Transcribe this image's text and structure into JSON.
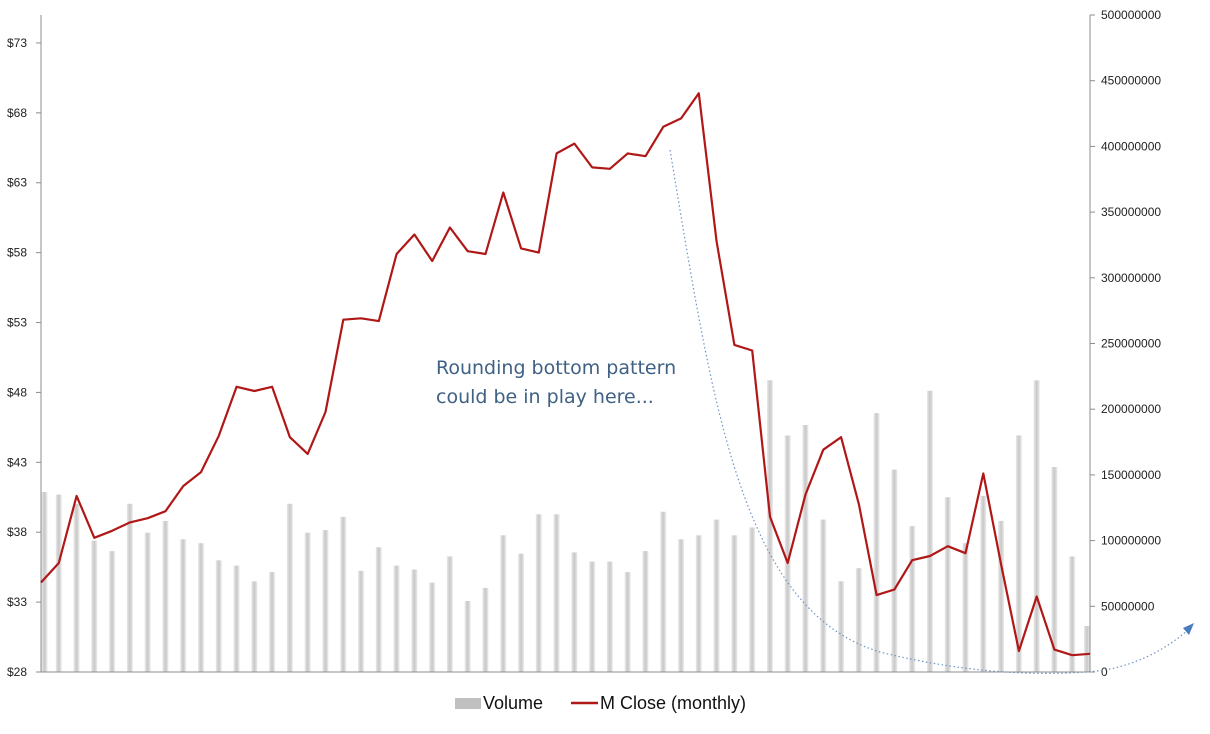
{
  "chart_data": {
    "type": "bar+line",
    "title": "",
    "xlabel": "",
    "ylabel_left": "",
    "ylabel_right": "",
    "left_axis": {
      "ylim": [
        28,
        75
      ],
      "tick_values": [
        28,
        33,
        38,
        43,
        48,
        53,
        58,
        63,
        68,
        73
      ],
      "tick_labels": [
        "$28",
        "$33",
        "$38",
        "$43",
        "$48",
        "$53",
        "$58",
        "$63",
        "$68",
        "$73"
      ]
    },
    "right_axis": {
      "ylim": [
        0,
        500000000
      ],
      "tick_values": [
        0,
        50000000,
        100000000,
        150000000,
        200000000,
        250000000,
        300000000,
        350000000,
        400000000,
        450000000,
        500000000
      ],
      "tick_labels": [
        "0",
        "50000000",
        "100000000",
        "150000000",
        "200000000",
        "250000000",
        "300000000",
        "350000000",
        "400000000",
        "450000000",
        "500000000"
      ]
    },
    "grid": false,
    "legend_position": "bottom",
    "series": [
      {
        "name": "Volume",
        "type": "bar",
        "axis": "right",
        "color": "#c8c8c8",
        "values": [
          137000000,
          135000000,
          128000000,
          100000000,
          92000000,
          128000000,
          106000000,
          115000000,
          101000000,
          98000000,
          85000000,
          81000000,
          69000000,
          76000000,
          128000000,
          106000000,
          108000000,
          118000000,
          77000000,
          95000000,
          81000000,
          78000000,
          68000000,
          88000000,
          54000000,
          64000000,
          104000000,
          90000000,
          120000000,
          120000000,
          91000000,
          84000000,
          84000000,
          76000000,
          92000000,
          122000000,
          101000000,
          104000000,
          116000000,
          104000000,
          110000000,
          222000000,
          180000000,
          188000000,
          116000000,
          69000000,
          79000000,
          197000000,
          154000000,
          111000000,
          214000000,
          133000000,
          98000000,
          134000000,
          115000000,
          180000000,
          222000000,
          156000000,
          88000000,
          35000000
        ]
      },
      {
        "name": "M Close (monthly)",
        "type": "line",
        "axis": "left",
        "color": "#b01818",
        "values": [
          34.4,
          35.8,
          40.6,
          37.6,
          38.1,
          38.7,
          39.0,
          39.5,
          41.3,
          42.3,
          44.9,
          48.4,
          48.1,
          48.4,
          44.8,
          43.6,
          46.6,
          53.2,
          53.3,
          53.1,
          57.9,
          59.3,
          57.4,
          59.8,
          58.1,
          57.9,
          62.3,
          58.3,
          58.0,
          65.1,
          65.8,
          64.1,
          64.0,
          65.1,
          64.9,
          67.0,
          67.6,
          69.4,
          58.8,
          51.4,
          51.0,
          39.1,
          35.8,
          40.7,
          43.9,
          44.8,
          40.0,
          33.5,
          33.9,
          36.0,
          36.3,
          37.0,
          36.5,
          42.2,
          35.7,
          29.5,
          33.4,
          29.6,
          29.2,
          29.3
        ]
      }
    ],
    "annotation": {
      "lines": [
        "Rounding bottom pattern",
        "could be in play here..."
      ]
    },
    "legend": [
      {
        "label": "Volume",
        "marker": "box",
        "color": "#c0c0c0"
      },
      {
        "label": "M Close (monthly)",
        "marker": "line",
        "color": "#b01818"
      }
    ]
  }
}
